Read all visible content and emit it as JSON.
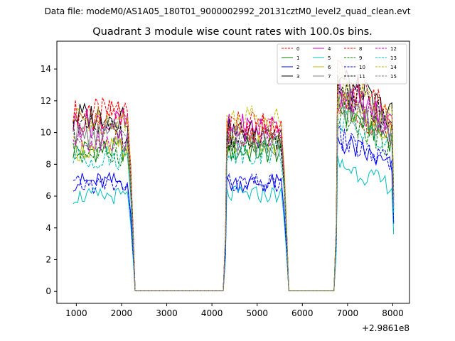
{
  "chart_data": {
    "type": "line",
    "suptitle": "Data file: modeM0/AS1A05_180T01_9000002992_20131cztM0_level2_quad_clean.evt",
    "title": "Quadrant 3 module wise count rates with 100.0s bins.",
    "xlabel": "",
    "ylabel": "",
    "x_offset_label": "+2.9861e8",
    "xlim": [
      570,
      8370
    ],
    "ylim": [
      -0.75,
      15.75
    ],
    "xticks": [
      1000,
      2000,
      3000,
      4000,
      5000,
      6000,
      7000,
      8000
    ],
    "xtick_labels": [
      "1000",
      "2000",
      "3000",
      "4000",
      "5000",
      "6000",
      "7000",
      "8000"
    ],
    "yticks": [
      0,
      2,
      4,
      6,
      8,
      10,
      12,
      14
    ],
    "ytick_labels": [
      "0",
      "2",
      "4",
      "6",
      "8",
      "10",
      "12",
      "14"
    ],
    "grid": false,
    "legend_position": "top-right",
    "segments": [
      {
        "start": 930,
        "end": 2130,
        "fall_end": 2300
      },
      {
        "start": 4330,
        "end": 5530,
        "fall_end": 5700
      },
      {
        "start": 6780,
        "end": 7980
      }
    ],
    "gap_level": 0.05,
    "series": [
      {
        "name": "0",
        "color": "#ff0000",
        "dash": "dashed",
        "levels": [
          11.2,
          10.4,
          10.8
        ]
      },
      {
        "name": "1",
        "color": "#008000",
        "dash": "solid",
        "levels": [
          8.9,
          8.8,
          10.4
        ]
      },
      {
        "name": "2",
        "color": "#0000ff",
        "dash": "solid",
        "levels": [
          6.9,
          6.8,
          8.5
        ]
      },
      {
        "name": "3",
        "color": "#000000",
        "dash": "solid",
        "levels": [
          11.0,
          10.0,
          12.0
        ]
      },
      {
        "name": "4",
        "color": "#cc00cc",
        "dash": "solid",
        "levels": [
          10.6,
          10.3,
          11.5
        ]
      },
      {
        "name": "5",
        "color": "#00bfbf",
        "dash": "solid",
        "levels": [
          6.0,
          6.1,
          7.2
        ]
      },
      {
        "name": "6",
        "color": "#bfbf00",
        "dash": "solid",
        "levels": [
          9.0,
          9.2,
          10.6
        ]
      },
      {
        "name": "7",
        "color": "#808080",
        "dash": "solid",
        "levels": [
          9.8,
          9.4,
          10.9
        ]
      },
      {
        "name": "8",
        "color": "#ff0000",
        "dash": "dashed",
        "levels": [
          11.0,
          10.2,
          12.2
        ]
      },
      {
        "name": "9",
        "color": "#008000",
        "dash": "dashed",
        "levels": [
          8.7,
          9.0,
          10.0
        ]
      },
      {
        "name": "10",
        "color": "#0000ff",
        "dash": "dashed",
        "levels": [
          6.7,
          6.8,
          8.7
        ]
      },
      {
        "name": "11",
        "color": "#000000",
        "dash": "dashed",
        "levels": [
          10.2,
          9.4,
          11.6
        ]
      },
      {
        "name": "12",
        "color": "#cc00cc",
        "dash": "dashed",
        "levels": [
          9.6,
          9.6,
          11.0
        ]
      },
      {
        "name": "13",
        "color": "#00bfbf",
        "dash": "dashed",
        "levels": [
          8.4,
          8.8,
          9.8
        ]
      },
      {
        "name": "14",
        "color": "#bfbf00",
        "dash": "dashed",
        "levels": [
          10.8,
          10.9,
          11.9
        ]
      },
      {
        "name": "15",
        "color": "#808080",
        "dash": "dashed",
        "levels": [
          10.0,
          9.5,
          10.7
        ]
      }
    ]
  }
}
